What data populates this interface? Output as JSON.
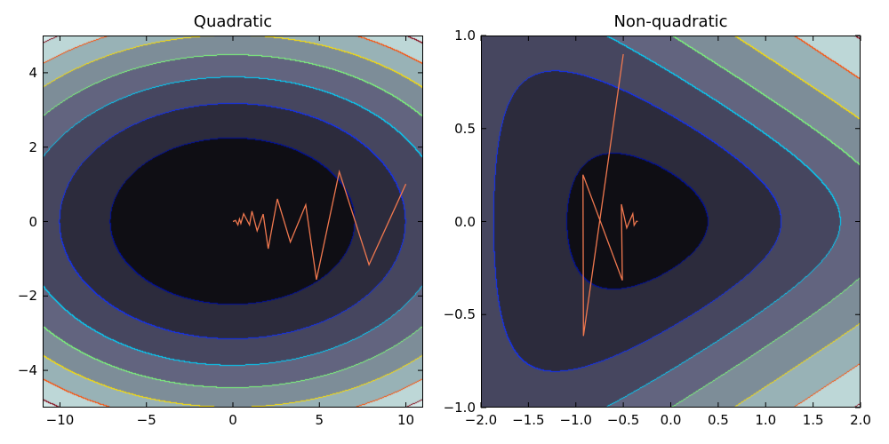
{
  "chart_data": [
    {
      "type": "contour",
      "title": "Quadratic",
      "xlim": [
        -11,
        11
      ],
      "ylim": [
        -5,
        5
      ],
      "xticks": [
        -10,
        -5,
        0,
        5,
        10
      ],
      "xtick_labels": [
        "−10",
        "−5",
        "0",
        "5",
        "10"
      ],
      "yticks": [
        -4,
        -2,
        0,
        2,
        4
      ],
      "ytick_labels": [
        "−4",
        "−2",
        "0",
        "2",
        "4"
      ],
      "levels": [
        50,
        100,
        150,
        200,
        250,
        300,
        350
      ],
      "path": {
        "x": [
          10.0,
          7.87,
          6.15,
          4.83,
          4.21,
          3.32,
          2.57,
          2.04,
          1.75,
          1.4,
          1.1,
          0.96,
          0.62,
          0.46,
          0.38,
          0.29,
          0.15,
          0.0
        ],
        "y": [
          1.01,
          -1.16,
          1.34,
          -1.56,
          0.45,
          -0.55,
          0.61,
          -0.73,
          0.2,
          -0.25,
          0.28,
          -0.09,
          0.21,
          -0.05,
          0.07,
          -0.09,
          0.03,
          0.0
        ]
      }
    },
    {
      "type": "contour",
      "title": "Non-quadratic",
      "xlim": [
        -2,
        2
      ],
      "ylim": [
        -1,
        1
      ],
      "xticks": [
        -2,
        -1.5,
        -1,
        -0.5,
        0,
        0.5,
        1,
        1.5,
        2
      ],
      "xtick_labels": [
        "−2.0",
        "−1.5",
        "−1.0",
        "−0.5",
        "0.0",
        "0.5",
        "1.0",
        "1.5",
        "2.0"
      ],
      "yticks": [
        -1,
        -0.5,
        0,
        0.5,
        1
      ],
      "ytick_labels": [
        "−1.0",
        "−0.5",
        "0.0",
        "0.5",
        "1.0"
      ],
      "levels": [
        3.3,
        6.1,
        11,
        19.3,
        36,
        67,
        127
      ],
      "path": {
        "x": [
          -0.5,
          -0.92,
          -0.925,
          -0.51,
          -0.52,
          -0.464,
          -0.4,
          -0.386,
          -0.36,
          -0.347
        ],
        "y": [
          0.9,
          -0.615,
          0.252,
          -0.316,
          0.093,
          -0.034,
          0.042,
          -0.02,
          0.002,
          0.0
        ]
      }
    }
  ],
  "colors": {
    "fill": [
      "#0f0e14",
      "#2c2b3c",
      "#46465f",
      "#62647f",
      "#7d8d98",
      "#98b2b6",
      "#bdd7d7",
      "#d6eaea"
    ],
    "lines": [
      "#0010a0",
      "#1030ff",
      "#00d5ff",
      "#7dff7a",
      "#ffe000",
      "#ff4a00",
      "#800010"
    ],
    "path": "#f0784f"
  }
}
